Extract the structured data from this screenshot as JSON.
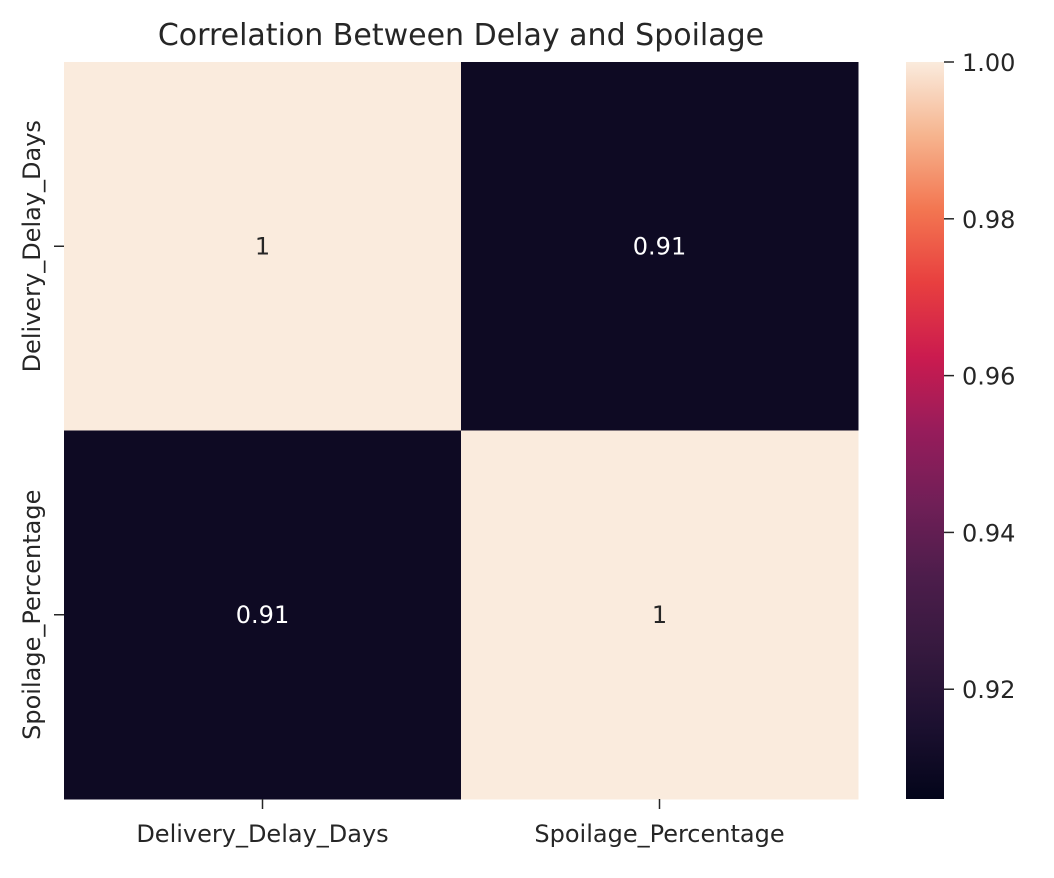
{
  "chart_data": {
    "type": "heatmap",
    "title": "Correlation Between Delay and Spoilage",
    "x_categories": [
      "Delivery_Delay_Days",
      "Spoilage_Percentage"
    ],
    "y_categories": [
      "Delivery_Delay_Days",
      "Spoilage_Percentage"
    ],
    "matrix": [
      [
        1,
        0.91
      ],
      [
        0.91,
        1
      ]
    ],
    "cell_labels": [
      [
        "1",
        "0.91"
      ],
      [
        "0.91",
        "1"
      ]
    ],
    "colorbar": {
      "min": 0.906,
      "max": 1.0,
      "ticks": [
        1.0,
        0.98,
        0.96,
        0.94,
        0.92
      ],
      "tick_labels": [
        "1.00",
        "0.98",
        "0.96",
        "0.94",
        "0.92"
      ]
    },
    "colormap": "rocket",
    "colors": {
      "low": "#03051a",
      "high": "#faebdd"
    },
    "grid": false,
    "legend": "right"
  }
}
